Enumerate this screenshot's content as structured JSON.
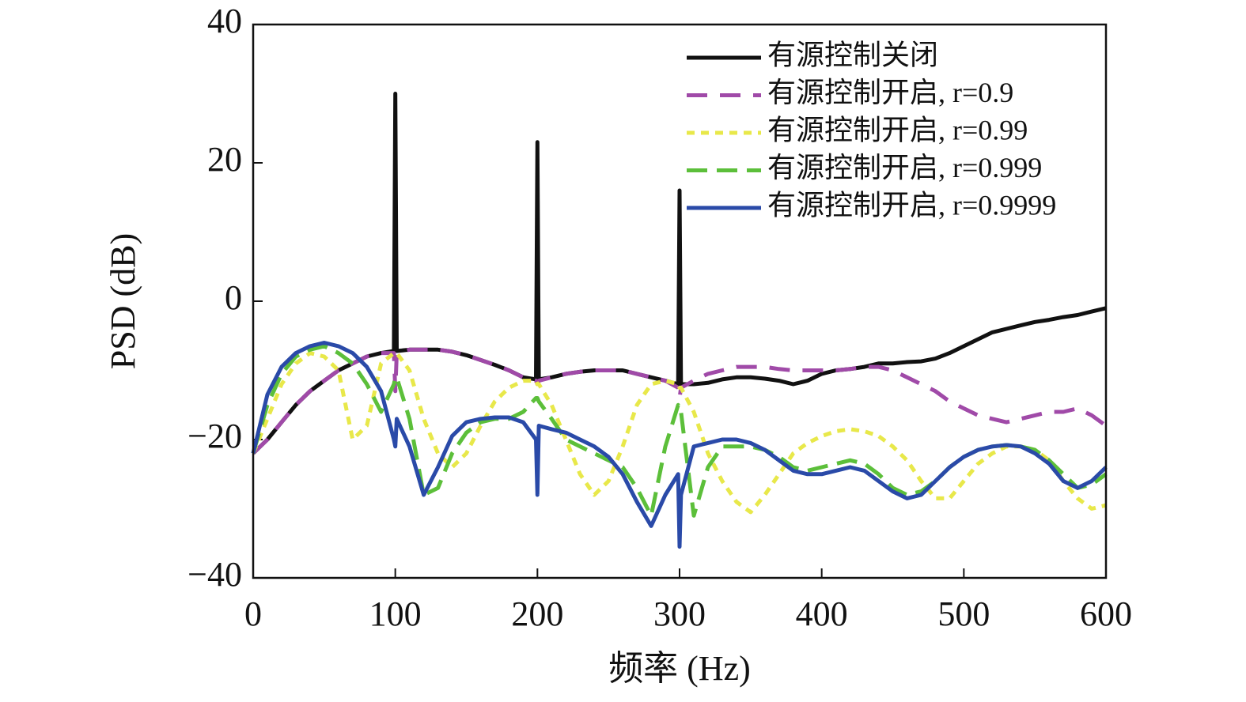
{
  "chart_data": {
    "type": "line",
    "xlabel": "频率 (Hz)",
    "ylabel": "PSD (dB)",
    "xlim": [
      0,
      600
    ],
    "ylim": [
      -40,
      40
    ],
    "xticks": [
      0,
      100,
      200,
      300,
      400,
      500,
      600
    ],
    "yticks": [
      {
        "value": -40,
        "label": "−40"
      },
      {
        "value": -20,
        "label": "−20"
      },
      0,
      20,
      40
    ],
    "legend": "upper right",
    "x": [
      0,
      10,
      20,
      30,
      40,
      50,
      60,
      70,
      80,
      90,
      99,
      100,
      101,
      110,
      120,
      130,
      140,
      150,
      160,
      170,
      180,
      190,
      199,
      200,
      201,
      210,
      220,
      230,
      240,
      250,
      260,
      270,
      280,
      290,
      299,
      300,
      301,
      310,
      320,
      330,
      340,
      350,
      360,
      370,
      380,
      390,
      400,
      410,
      420,
      430,
      440,
      450,
      460,
      470,
      480,
      490,
      500,
      510,
      520,
      530,
      540,
      550,
      560,
      570,
      580,
      590,
      600
    ],
    "series": [
      {
        "name": "有源控制关闭",
        "color": "#111111",
        "dash": "none",
        "values": [
          -22,
          -20,
          -17.5,
          -15,
          -13,
          -11.5,
          -10,
          -9,
          -8,
          -7.5,
          -7.2,
          30,
          -7.2,
          -7,
          -7,
          -7,
          -7.3,
          -7.8,
          -8.5,
          -9.2,
          -10,
          -11,
          -11.3,
          23,
          -11.3,
          -11,
          -10.5,
          -10.2,
          -10,
          -10,
          -10,
          -10.5,
          -11,
          -11.5,
          -12,
          16,
          -12,
          -12,
          -11.8,
          -11.3,
          -11,
          -11,
          -11.2,
          -11.5,
          -12,
          -11.5,
          -10.5,
          -10,
          -9.8,
          -9.5,
          -9,
          -9,
          -8.8,
          -8.7,
          -8.3,
          -7.5,
          -6.5,
          -5.5,
          -4.5,
          -4,
          -3.5,
          -3,
          -2.7,
          -2.3,
          -2,
          -1.5,
          -1
        ]
      },
      {
        "name": "有源控制开启, r=0.9",
        "color": "#a04aa8",
        "dash": "26,16",
        "values": [
          -22,
          -20,
          -17.5,
          -15,
          -13,
          -11.5,
          -10,
          -9,
          -8,
          -7.5,
          -7.5,
          -13,
          -7.5,
          -7,
          -7,
          -7,
          -7.3,
          -7.8,
          -8.5,
          -9.2,
          -10,
          -11,
          -11.5,
          -12,
          -11.5,
          -11,
          -10.5,
          -10.2,
          -10,
          -10,
          -10,
          -10.5,
          -11,
          -11.5,
          -12.5,
          -14,
          -12.5,
          -11.5,
          -10.5,
          -10,
          -9.5,
          -9.5,
          -9.5,
          -9.8,
          -10,
          -10,
          -10,
          -10,
          -9.8,
          -9.5,
          -9.5,
          -10,
          -11,
          -12,
          -13,
          -14.5,
          -15.5,
          -16.5,
          -17,
          -17.5,
          -17,
          -16.5,
          -16,
          -16,
          -15.5,
          -16.5,
          -18
        ]
      },
      {
        "name": "有源控制开启, r=0.99",
        "color": "#e8e84a",
        "dash": "10,8",
        "values": [
          -22,
          -17,
          -12,
          -9,
          -7.5,
          -8,
          -10,
          -20,
          -18,
          -9,
          -7.5,
          -7.5,
          -7.5,
          -10,
          -17,
          -22,
          -24,
          -22,
          -18,
          -14.5,
          -12.5,
          -11.5,
          -11.5,
          -12,
          -12,
          -15,
          -20,
          -25,
          -28,
          -26,
          -21,
          -15,
          -12,
          -11.5,
          -12,
          -12.5,
          -12.5,
          -16,
          -22,
          -26,
          -29,
          -30.5,
          -28,
          -25,
          -22,
          -20.5,
          -19.5,
          -18.8,
          -18.5,
          -18.8,
          -19.5,
          -21,
          -23,
          -26,
          -28.5,
          -28.5,
          -26,
          -23.5,
          -22,
          -21,
          -21,
          -21.5,
          -23,
          -26,
          -28.5,
          -30,
          -29.5
        ]
      },
      {
        "name": "有源控制开启, r=0.999",
        "color": "#5cbf3a",
        "dash": "26,12",
        "values": [
          -22,
          -15,
          -10.5,
          -8,
          -7,
          -6.5,
          -7.5,
          -9,
          -12,
          -16,
          -12,
          -11,
          -11,
          -17,
          -28,
          -27,
          -22,
          -19,
          -17.5,
          -17,
          -17,
          -16,
          -14,
          -14,
          -14.5,
          -17,
          -20,
          -21,
          -22,
          -23,
          -24,
          -27,
          -31,
          -21,
          -15,
          -16,
          -16,
          -31,
          -24,
          -21,
          -21,
          -21,
          -21.5,
          -22.5,
          -24,
          -24.5,
          -24,
          -23.5,
          -23,
          -23.5,
          -25,
          -27,
          -28,
          -27.5,
          -26,
          -24,
          -22.5,
          -21.5,
          -21,
          -20.8,
          -21,
          -21.5,
          -23,
          -25,
          -27,
          -26.5,
          -25
        ]
      },
      {
        "name": "有源控制开启, r=0.9999",
        "color": "#2a4aa8",
        "dash": "none",
        "values": [
          -22,
          -13.5,
          -9.5,
          -7.5,
          -6.5,
          -6,
          -6.5,
          -7.5,
          -9.5,
          -13,
          -20,
          -21,
          -17,
          -21,
          -28,
          -24,
          -19.5,
          -17.5,
          -17,
          -16.8,
          -16.8,
          -17.5,
          -20,
          -28,
          -18,
          -18.5,
          -19,
          -20,
          -21,
          -22.5,
          -25,
          -29,
          -32.5,
          -28,
          -25,
          -35.5,
          -28,
          -21,
          -20.5,
          -20,
          -20,
          -20.5,
          -21.5,
          -23,
          -24.5,
          -25,
          -25,
          -24.5,
          -24,
          -24.5,
          -26,
          -27.5,
          -28.5,
          -28,
          -26,
          -24,
          -22.5,
          -21.5,
          -21,
          -20.8,
          -21,
          -22,
          -23.5,
          -26,
          -27,
          -26,
          -24
        ]
      }
    ]
  }
}
